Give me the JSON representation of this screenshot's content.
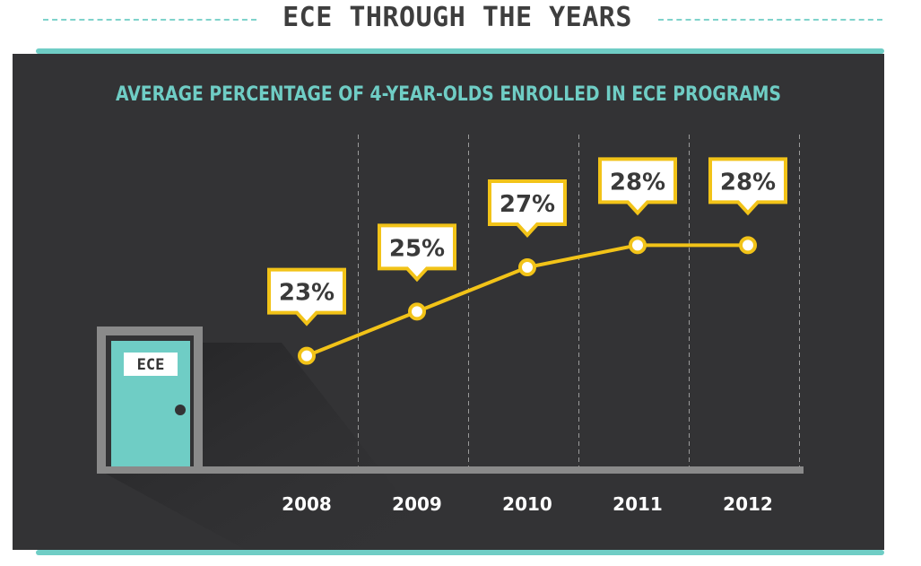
{
  "page_title": "ECE THROUGH THE YEARS",
  "door_sign": "ECE",
  "colors": {
    "accent": "#f2c318",
    "teal": "#6fcdc5",
    "panel_background": "#333335",
    "label_text": "#3a3a3a"
  },
  "chart_data": {
    "type": "line",
    "title": "AVERAGE PERCENTAGE OF 4-YEAR-OLDS ENROLLED IN ECE PROGRAMS",
    "xlabel": "",
    "ylabel": "",
    "categories": [
      "2008",
      "2009",
      "2010",
      "2011",
      "2012"
    ],
    "values": [
      23,
      25,
      27,
      28,
      28
    ],
    "data_labels": [
      "23%",
      "25%",
      "27%",
      "28%",
      "28%"
    ],
    "ylim": [
      18,
      33
    ],
    "grid": "vertical-dashed",
    "legend": "none"
  }
}
